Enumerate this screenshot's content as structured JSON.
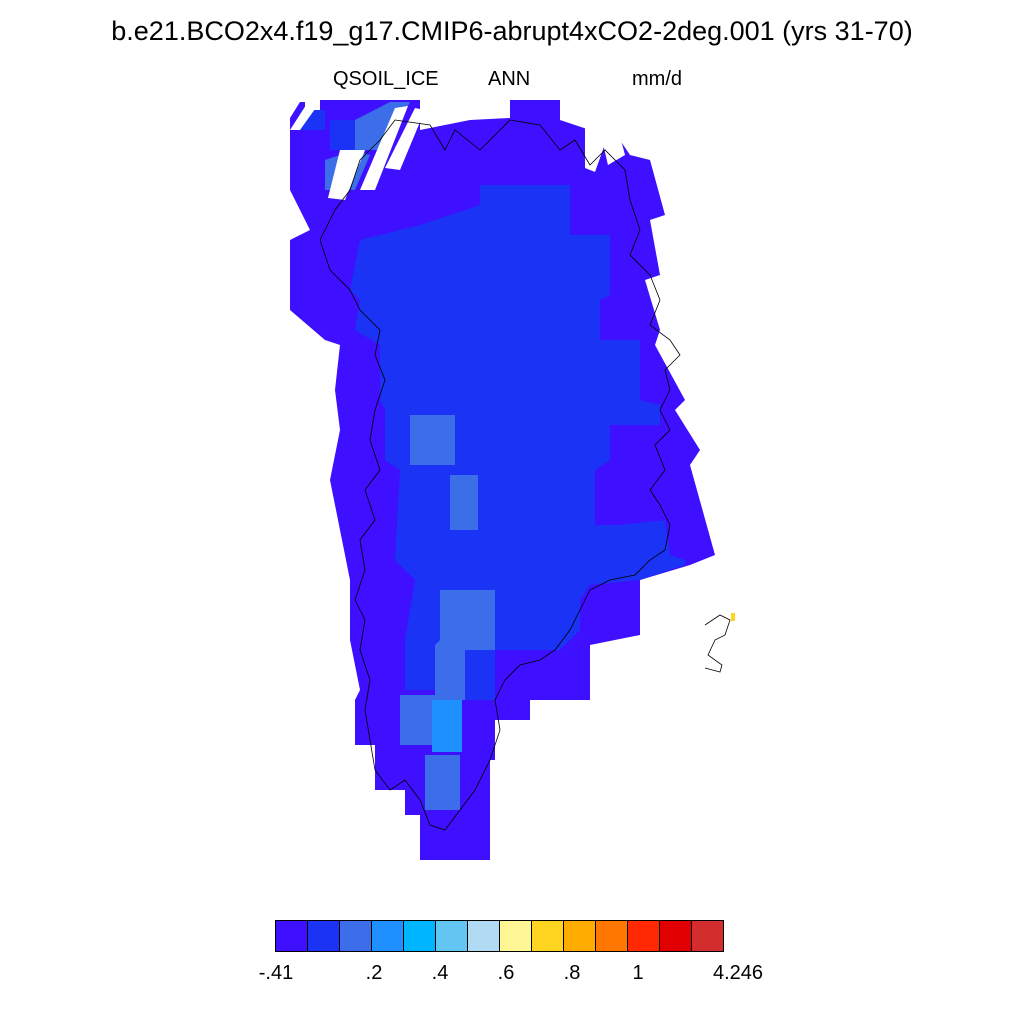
{
  "title": "b.e21.BCO2x4.f19_g17.CMIP6-abrupt4xCO2-2deg.001 (yrs 31-70)",
  "left_string": "QSOIL_ICE",
  "center_string": "ANN",
  "right_string": "mm/d",
  "colors": {
    "c0": "#3F0FFF",
    "c1": "#1A33F5",
    "c2": "#3B6EE8",
    "c3": "#1E90FF",
    "c4": "#00B5FF",
    "c5": "#62C5F2",
    "c6": "#B1DBF2",
    "c7": "#FFF796",
    "c8": "#FFD521",
    "c9": "#FFAB00",
    "c10": "#FF7700",
    "c11": "#FF2800",
    "c12": "#E00000",
    "c13": "#D42D2D"
  },
  "colorbar": {
    "colors": [
      "#3F0FFF",
      "#1A33F5",
      "#3B6EE8",
      "#1E90FF",
      "#00B5FF",
      "#62C5F2",
      "#B1DBF2",
      "#FFF796",
      "#FFD521",
      "#FFAB00",
      "#FF7700",
      "#FF2800",
      "#E00000",
      "#D42D2D"
    ],
    "labels": [
      "-.41",
      ".2",
      ".4",
      ".6",
      ".8",
      "1",
      "4.246"
    ]
  }
}
